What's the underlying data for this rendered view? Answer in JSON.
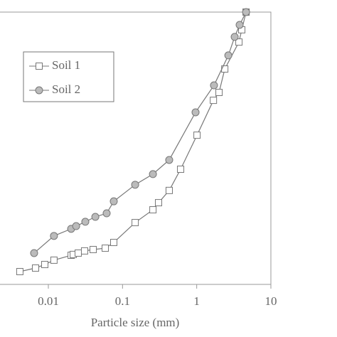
{
  "chart_data": {
    "type": "line",
    "xlabel": "Particle size (mm)",
    "xscale": "log",
    "xlim": [
      0.00223,
      10
    ],
    "xticks": [
      0.01,
      0.1,
      1,
      10
    ],
    "ylim": [
      0,
      100
    ],
    "legend": "upper-left",
    "color": "#777777",
    "series": [
      {
        "name": "Soil 1",
        "marker": "square",
        "color": "#777777",
        "x": [
          0.00413,
          0.00672,
          0.00895,
          0.0119,
          0.0203,
          0.0217,
          0.0253,
          0.0308,
          0.0402,
          0.0585,
          0.0762,
          0.148,
          0.257,
          0.306,
          0.426,
          0.607,
          1.01,
          1.68,
          2.0,
          2.39,
          3.71,
          4.05,
          4.63
        ],
        "values": [
          4.7,
          6.0,
          7.3,
          8.9,
          10.7,
          11.0,
          11.5,
          12.3,
          12.8,
          13.3,
          15.4,
          22.7,
          27.4,
          30.0,
          34.5,
          42.3,
          54.8,
          67.6,
          70.5,
          79.1,
          89.0,
          93.5,
          100
        ]
      },
      {
        "name": "Soil 2",
        "marker": "circle",
        "color": "#777777",
        "x": [
          0.00643,
          0.0119,
          0.0203,
          0.0237,
          0.0315,
          0.043,
          0.0611,
          0.0762,
          0.148,
          0.257,
          0.426,
          0.965,
          1.71,
          2.67,
          3.25,
          3.79,
          4.63
        ],
        "values": [
          11.5,
          17.8,
          20.4,
          21.4,
          23.0,
          24.8,
          26.1,
          30.5,
          36.6,
          40.5,
          45.7,
          63.2,
          73.1,
          84.1,
          90.9,
          95.3,
          100
        ]
      }
    ]
  }
}
